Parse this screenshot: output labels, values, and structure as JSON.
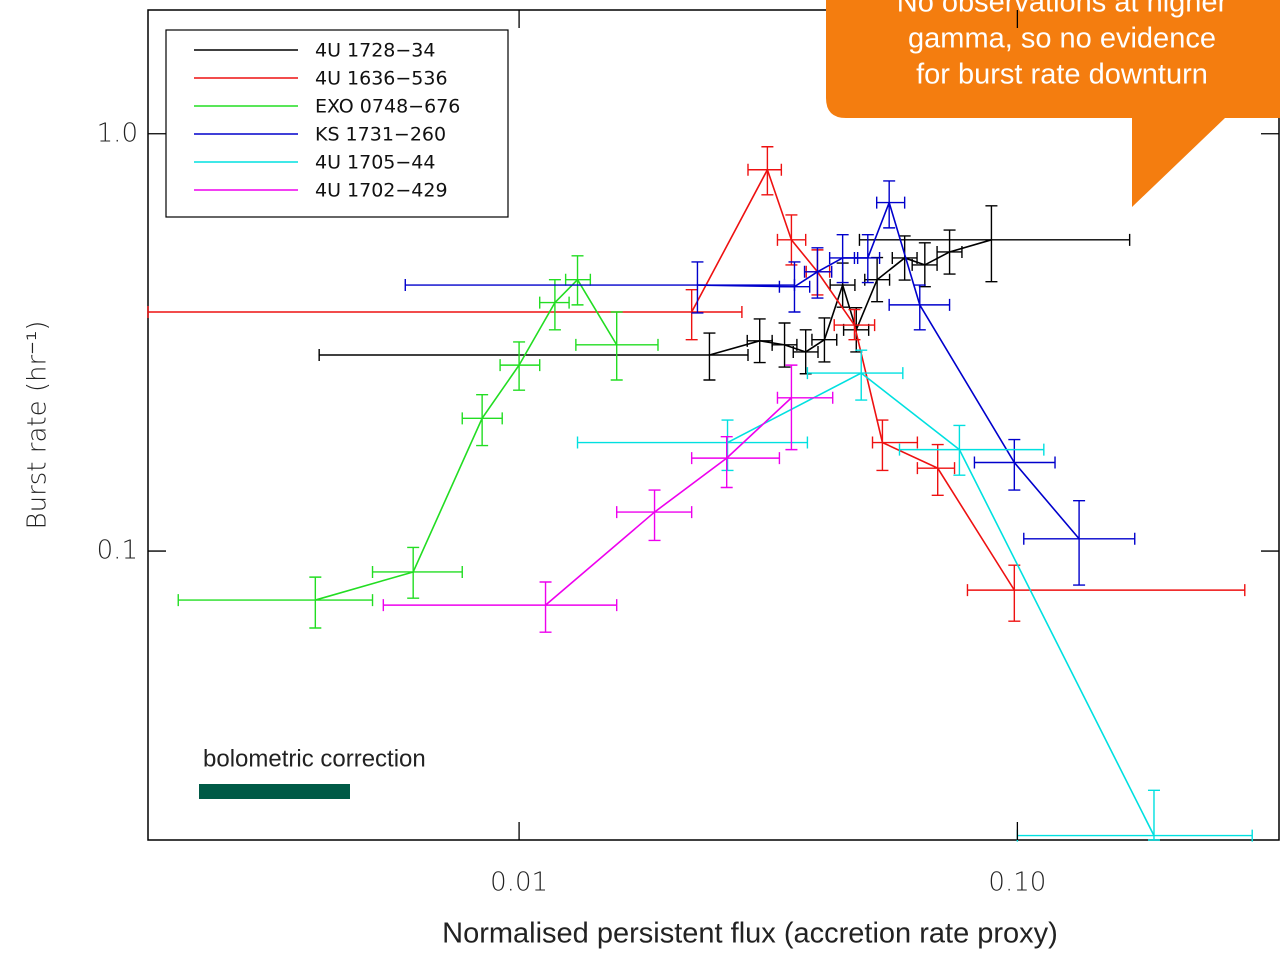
{
  "chart_data": {
    "type": "line",
    "x_label": "Normalised persistent flux (accretion rate proxy)",
    "y_label": "Burst rate (hr⁻¹)",
    "xscale": "log",
    "yscale": "log",
    "xlim": [
      0.0018,
      0.335
    ],
    "ylim": [
      0.0203,
      1.98
    ],
    "xticks": [
      0.01,
      {
        "value": 0.1,
        "label": "0.10"
      }
    ],
    "yticks": [
      {
        "value": 1,
        "label": "1.0"
      },
      0.1
    ],
    "legend": "upper left",
    "note": "bolometric correction",
    "callout_lines": [
      "No observations at higher",
      "gamma, so no evidence",
      "for burst rate downturn"
    ],
    "series": [
      {
        "name": "4U 1728−34",
        "color": "#000000",
        "x": [
          0.0241,
          0.0304,
          0.0341,
          0.0376,
          0.041,
          0.0446,
          0.0475,
          0.0523,
          0.0594,
          0.0652,
          0.0731,
          0.0887
        ],
        "values": [
          0.295,
          0.319,
          0.312,
          0.3,
          0.321,
          0.434,
          0.339,
          0.447,
          0.504,
          0.485,
          0.521,
          0.557
        ],
        "x_low": [
          0.00397,
          0.0287,
          0.0322,
          0.0355,
          0.0387,
          0.0421,
          0.0448,
          0.0494,
          0.0561,
          0.0615,
          0.069,
          0.0482
        ],
        "x_high": [
          0.0288,
          0.0322,
          0.0361,
          0.0398,
          0.0434,
          0.0472,
          0.0503,
          0.0554,
          0.0629,
          0.069,
          0.0774,
          0.168
        ],
        "y_low": [
          0.257,
          0.283,
          0.276,
          0.266,
          0.284,
          0.384,
          0.3,
          0.396,
          0.446,
          0.43,
          0.461,
          0.442
        ],
        "y_high": [
          0.333,
          0.36,
          0.352,
          0.339,
          0.362,
          0.49,
          0.383,
          0.505,
          0.569,
          0.548,
          0.588,
          0.672
        ]
      },
      {
        "name": "4U 1636−536",
        "color": "#ee1111",
        "x": [
          0.0222,
          0.0315,
          0.0352,
          0.0397,
          0.0471,
          0.0536,
          0.0692,
          0.0986
        ],
        "values": [
          0.374,
          0.82,
          0.557,
          0.467,
          0.348,
          0.182,
          0.158,
          0.0806
        ],
        "x_low": [
          0.0018,
          0.0288,
          0.033,
          0.0377,
          0.0429,
          0.0512,
          0.063,
          0.0794
        ],
        "x_high": [
          0.028,
          0.0336,
          0.0376,
          0.042,
          0.0517,
          0.063,
          0.0748,
          0.286
        ],
        "y_low": [
          0.321,
          0.714,
          0.485,
          0.411,
          0.321,
          0.156,
          0.136,
          0.0679
        ],
        "y_high": [
          0.423,
          0.931,
          0.639,
          0.527,
          0.379,
          0.206,
          0.18,
          0.0925
        ]
      },
      {
        "name": "EXO 0748−676",
        "color": "#22dd22",
        "x": [
          0.0039,
          0.00613,
          0.00843,
          0.01,
          0.0118,
          0.0131,
          0.0157
        ],
        "values": [
          0.0763,
          0.0891,
          0.208,
          0.279,
          0.394,
          0.447,
          0.312
        ],
        "x_low": [
          0.00207,
          0.00508,
          0.00769,
          0.00916,
          0.011,
          0.0124,
          0.013
        ],
        "x_high": [
          0.00508,
          0.00769,
          0.00925,
          0.011,
          0.0126,
          0.0139,
          0.019
        ],
        "y_low": [
          0.0654,
          0.0771,
          0.179,
          0.243,
          0.339,
          0.389,
          0.257
        ],
        "y_high": [
          0.0866,
          0.102,
          0.237,
          0.317,
          0.447,
          0.51,
          0.374
        ]
      },
      {
        "name": "KS 1731−260",
        "color": "#0000cc",
        "x": [
          0.0228,
          0.0357,
          0.0397,
          0.0446,
          0.0501,
          0.0553,
          0.0637,
          0.0986,
          0.133
        ],
        "values": [
          0.434,
          0.43,
          0.467,
          0.504,
          0.504,
          0.684,
          0.389,
          0.163,
          0.107
        ],
        "x_low": [
          0.00591,
          0.0333,
          0.0374,
          0.042,
          0.0471,
          0.0522,
          0.0553,
          0.082,
          0.103
        ],
        "x_high": [
          0.0357,
          0.0383,
          0.0424,
          0.0478,
          0.0529,
          0.0594,
          0.0731,
          0.119,
          0.172
        ],
        "y_low": [
          0.372,
          0.374,
          0.404,
          0.44,
          0.44,
          0.595,
          0.339,
          0.14,
          0.0829
        ],
        "y_high": [
          0.493,
          0.493,
          0.533,
          0.573,
          0.573,
          0.771,
          0.434,
          0.185,
          0.132
        ]
      },
      {
        "name": "4U 1705−44",
        "color": "#00e0e0",
        "x": [
          0.0262,
          0.0486,
          0.0765,
          0.188
        ],
        "values": [
          0.182,
          0.267,
          0.175,
          0.0208
        ],
        "x_low": [
          0.0131,
          0.0379,
          0.058,
          0.1
        ],
        "x_high": [
          0.0379,
          0.0589,
          0.113,
          0.296
        ],
        "y_low": [
          0.156,
          0.23,
          0.152,
          0.0203
        ],
        "y_high": [
          0.206,
          0.303,
          0.2,
          0.0267
        ]
      },
      {
        "name": "4U 1702−429",
        "color": "#ee00ee",
        "x": [
          0.0113,
          0.0187,
          0.0261,
          0.0352
        ],
        "values": [
          0.0742,
          0.124,
          0.167,
          0.233
        ],
        "x_low": [
          0.00534,
          0.0157,
          0.0222,
          0.033
        ],
        "x_high": [
          0.0157,
          0.0222,
          0.0333,
          0.0426
        ],
        "y_low": [
          0.0639,
          0.106,
          0.142,
          0.175
        ],
        "y_high": [
          0.0843,
          0.14,
          0.188,
          0.279
        ]
      }
    ]
  }
}
